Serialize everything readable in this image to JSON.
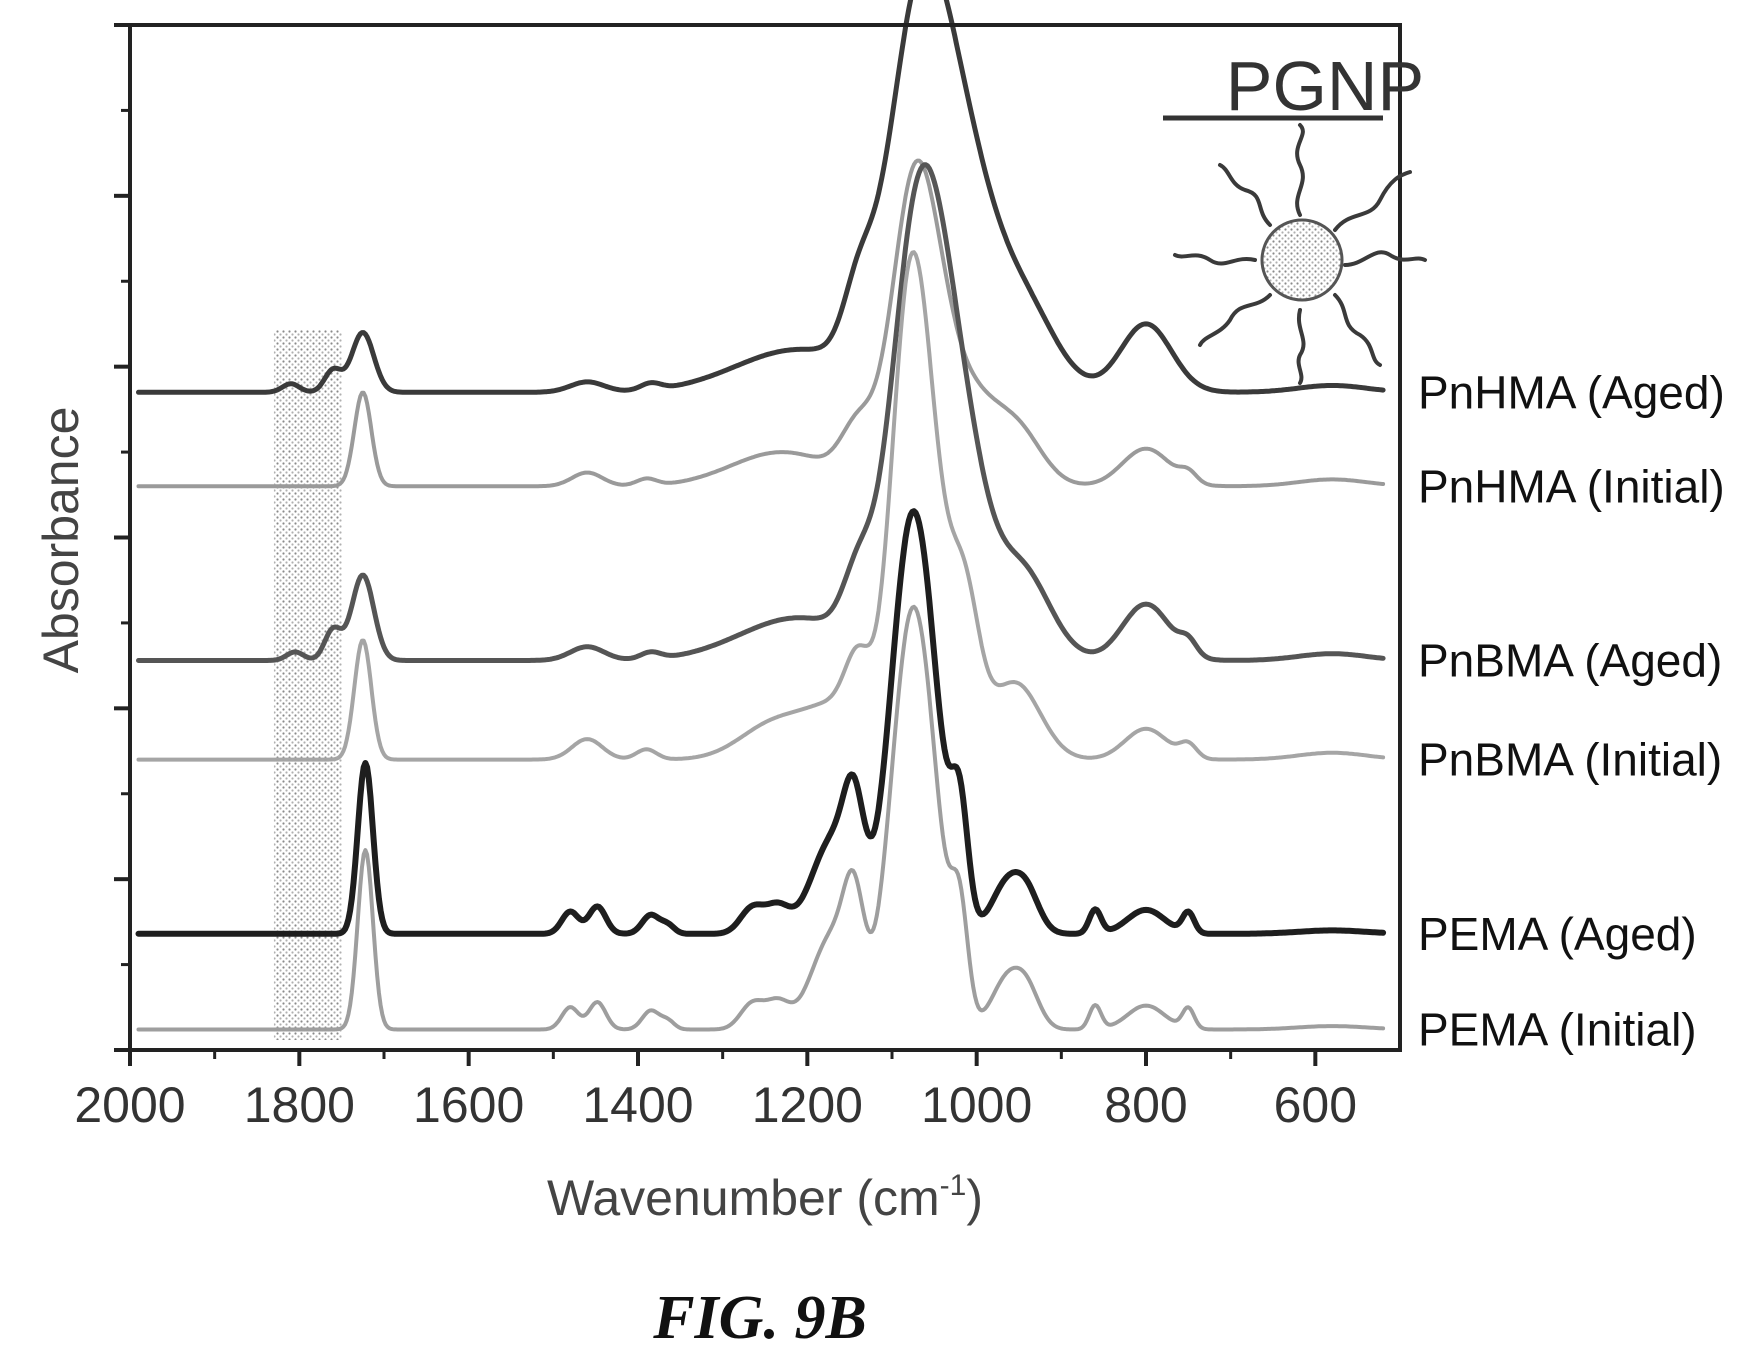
{
  "figure": {
    "caption": "FIG. 9B"
  },
  "inset": {
    "title": "PGNP",
    "icon": "polymer-grafted-nanoparticle-icon"
  },
  "chart_data": {
    "type": "line",
    "title": "",
    "xlabel": "Wavenumber (cm",
    "xlabel_superscript": "-1",
    "xlabel_suffix": ")",
    "ylabel": "Absorbance",
    "xlim": [
      2000,
      500
    ],
    "x_reversed": true,
    "ylim": [
      0,
      6
    ],
    "y_tick_labels_shown": false,
    "xticks": [
      2000,
      1800,
      1600,
      1400,
      1200,
      1000,
      800,
      600
    ],
    "grid": false,
    "legend": "labels at right end of each trace",
    "highlight_band": {
      "from": 1830,
      "to": 1750,
      "pattern": "stippled"
    },
    "series": [
      {
        "name": "PnHMA (Aged)",
        "color": "#3a3a3a",
        "width": 5,
        "baseline": 3.85,
        "peaks": [
          [
            1810,
            0.05,
            10
          ],
          [
            1760,
            0.13,
            10
          ],
          [
            1725,
            0.35,
            13
          ],
          [
            1460,
            0.06,
            20
          ],
          [
            1385,
            0.04,
            12
          ],
          [
            1210,
            0.25,
            75
          ],
          [
            1140,
            0.35,
            18
          ],
          [
            1075,
            1.2,
            35
          ],
          [
            1045,
            1.45,
            40
          ],
          [
            1000,
            0.35,
            30
          ],
          [
            950,
            0.55,
            40
          ],
          [
            800,
            0.4,
            30
          ],
          [
            580,
            0.04,
            40
          ]
        ]
      },
      {
        "name": "PnHMA (Initial)",
        "color": "#9a9a9a",
        "width": 4,
        "baseline": 3.3,
        "peaks": [
          [
            1725,
            0.55,
            10
          ],
          [
            1460,
            0.08,
            18
          ],
          [
            1390,
            0.04,
            12
          ],
          [
            1230,
            0.2,
            60
          ],
          [
            1140,
            0.3,
            20
          ],
          [
            1080,
            1.0,
            25
          ],
          [
            1055,
            1.1,
            30
          ],
          [
            1000,
            0.3,
            25
          ],
          [
            955,
            0.35,
            30
          ],
          [
            800,
            0.22,
            28
          ],
          [
            750,
            0.06,
            10
          ],
          [
            580,
            0.04,
            40
          ]
        ]
      },
      {
        "name": "PnBMA (Aged)",
        "color": "#555555",
        "width": 5,
        "baseline": 2.28,
        "peaks": [
          [
            1805,
            0.05,
            10
          ],
          [
            1760,
            0.18,
            10
          ],
          [
            1725,
            0.5,
            13
          ],
          [
            1460,
            0.08,
            20
          ],
          [
            1385,
            0.04,
            12
          ],
          [
            1210,
            0.25,
            70
          ],
          [
            1140,
            0.35,
            18
          ],
          [
            1080,
            1.6,
            28
          ],
          [
            1045,
            1.8,
            30
          ],
          [
            1005,
            0.5,
            25
          ],
          [
            950,
            0.55,
            35
          ],
          [
            800,
            0.33,
            28
          ],
          [
            750,
            0.08,
            10
          ],
          [
            580,
            0.04,
            40
          ]
        ]
      },
      {
        "name": "PnBMA (Initial)",
        "color": "#a5a5a5",
        "width": 4,
        "baseline": 1.7,
        "peaks": [
          [
            1725,
            0.7,
            10
          ],
          [
            1460,
            0.12,
            18
          ],
          [
            1390,
            0.06,
            12
          ],
          [
            1240,
            0.2,
            40
          ],
          [
            1160,
            0.3,
            40
          ],
          [
            1140,
            0.35,
            15
          ],
          [
            1085,
            1.8,
            20
          ],
          [
            1060,
            1.7,
            22
          ],
          [
            1015,
            0.9,
            18
          ],
          [
            955,
            0.45,
            30
          ],
          [
            800,
            0.18,
            25
          ],
          [
            750,
            0.08,
            10
          ],
          [
            580,
            0.04,
            40
          ]
        ]
      },
      {
        "name": "PEMA (Aged)",
        "color": "#1e1e1e",
        "width": 6,
        "baseline": 0.68,
        "peaks": [
          [
            1722,
            1.0,
            9
          ],
          [
            1480,
            0.13,
            10
          ],
          [
            1448,
            0.16,
            10
          ],
          [
            1385,
            0.11,
            10
          ],
          [
            1365,
            0.05,
            8
          ],
          [
            1265,
            0.15,
            14
          ],
          [
            1235,
            0.15,
            14
          ],
          [
            1170,
            0.55,
            25
          ],
          [
            1145,
            0.55,
            12
          ],
          [
            1085,
            1.6,
            22
          ],
          [
            1060,
            1.3,
            22
          ],
          [
            1020,
            0.65,
            10
          ],
          [
            965,
            0.28,
            18
          ],
          [
            940,
            0.2,
            15
          ],
          [
            860,
            0.14,
            7
          ],
          [
            800,
            0.14,
            22
          ],
          [
            750,
            0.12,
            7
          ],
          [
            580,
            0.02,
            40
          ]
        ]
      },
      {
        "name": "PEMA (Initial)",
        "color": "#9e9e9e",
        "width": 4,
        "baseline": 0.12,
        "peaks": [
          [
            1722,
            1.05,
            9
          ],
          [
            1480,
            0.13,
            10
          ],
          [
            1448,
            0.16,
            10
          ],
          [
            1385,
            0.11,
            10
          ],
          [
            1365,
            0.05,
            8
          ],
          [
            1265,
            0.15,
            14
          ],
          [
            1235,
            0.15,
            14
          ],
          [
            1170,
            0.55,
            25
          ],
          [
            1145,
            0.55,
            12
          ],
          [
            1085,
            1.6,
            22
          ],
          [
            1060,
            1.3,
            22
          ],
          [
            1020,
            0.6,
            10
          ],
          [
            965,
            0.28,
            18
          ],
          [
            940,
            0.2,
            15
          ],
          [
            860,
            0.14,
            7
          ],
          [
            800,
            0.14,
            22
          ],
          [
            750,
            0.12,
            7
          ],
          [
            580,
            0.02,
            40
          ]
        ]
      }
    ]
  }
}
